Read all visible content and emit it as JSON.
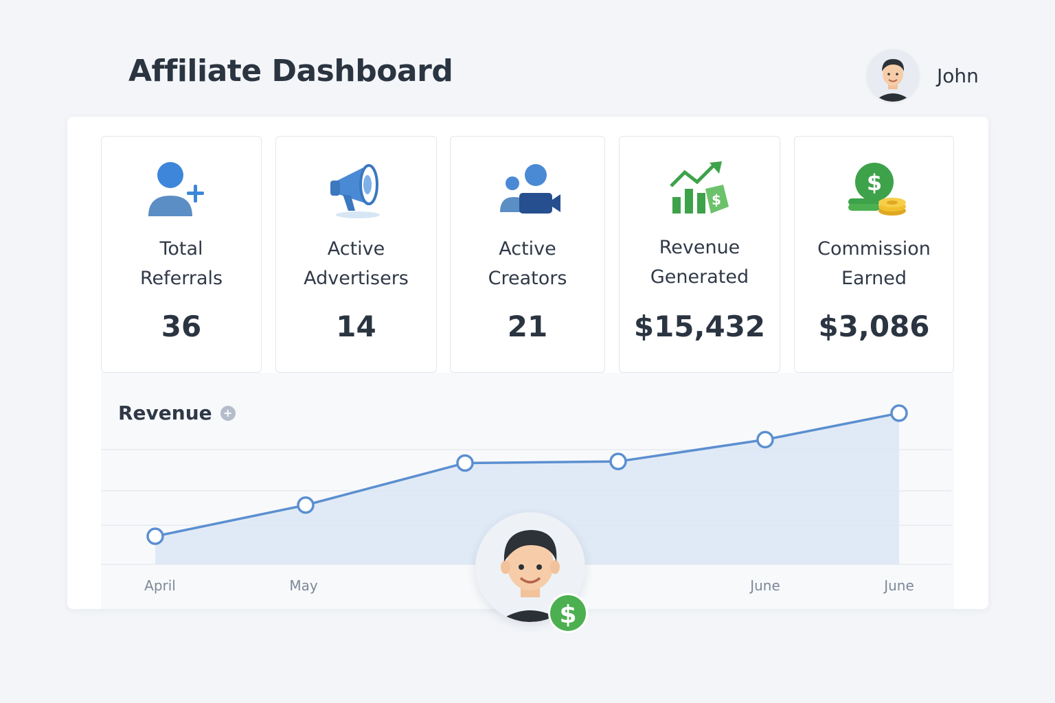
{
  "header": {
    "title": "Affiliate Dashboard",
    "user_name": "John"
  },
  "cards": [
    {
      "label_line1": "Total",
      "label_line2": "Referrals",
      "value": "36",
      "icon": "add-user-icon"
    },
    {
      "label_line1": "Active",
      "label_line2": "Advertisers",
      "value": "14",
      "icon": "megaphone-icon"
    },
    {
      "label_line1": "Active",
      "label_line2": "Creators",
      "value": "21",
      "icon": "video-creators-icon"
    },
    {
      "label_line1": "Revenue",
      "label_line2": "Generated",
      "value": "$15,432",
      "icon": "growth-chart-icon"
    },
    {
      "label_line1": "Commission",
      "label_line2": "Earned",
      "value": "$3,086",
      "icon": "coins-icon"
    }
  ],
  "chart_section": {
    "title": "Revenue",
    "badge_symbol": "$"
  },
  "colors": {
    "accent": "#5b8fd0",
    "fill": "#dde8f5",
    "green": "#4caf50"
  },
  "chart_data": {
    "type": "area",
    "title": "Revenue",
    "x_labels": [
      "April",
      "May",
      "",
      "",
      "June",
      "June"
    ],
    "values": [
      18,
      38,
      65,
      66,
      80,
      97
    ],
    "ylim": [
      0,
      100
    ],
    "grid": true,
    "legend": "none"
  }
}
